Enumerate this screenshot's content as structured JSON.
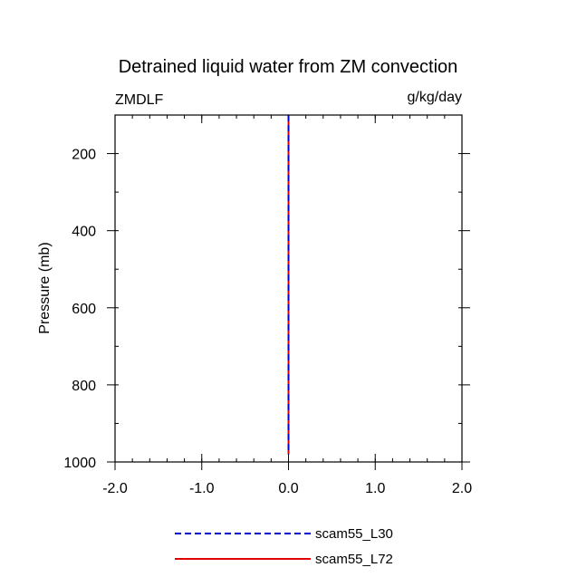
{
  "chart_data": {
    "type": "line",
    "title": "Detrained liquid water from ZM convection",
    "left_label": "ZMDLF",
    "right_label": "g/kg/day",
    "xlabel": "",
    "ylabel": "Pressure (mb)",
    "xlim": [
      -2.0,
      2.0
    ],
    "ylim": [
      100,
      1000
    ],
    "y_inverted": true,
    "x_ticks": [
      -2.0,
      -1.0,
      0.0,
      1.0,
      2.0
    ],
    "x_tick_labels": [
      "-2.0",
      "-1.0",
      "0.0",
      "1.0",
      "2.0"
    ],
    "x_minor_step": 0.2,
    "y_ticks": [
      200,
      400,
      600,
      800,
      1000
    ],
    "y_tick_labels": [
      "200",
      "400",
      "600",
      "800",
      "1000"
    ],
    "y_minor_step": 100,
    "grid": false,
    "legend_position": "bottom",
    "series": [
      {
        "name": "scam55_L30",
        "color": "#0000cc",
        "dash": "dashed",
        "x": [
          0.0,
          0.0
        ],
        "y": [
          100,
          980
        ]
      },
      {
        "name": "scam55_L72",
        "color": "#e00000",
        "dash": "solid",
        "x": [
          0.0,
          0.0
        ],
        "y": [
          100,
          980
        ]
      }
    ]
  }
}
